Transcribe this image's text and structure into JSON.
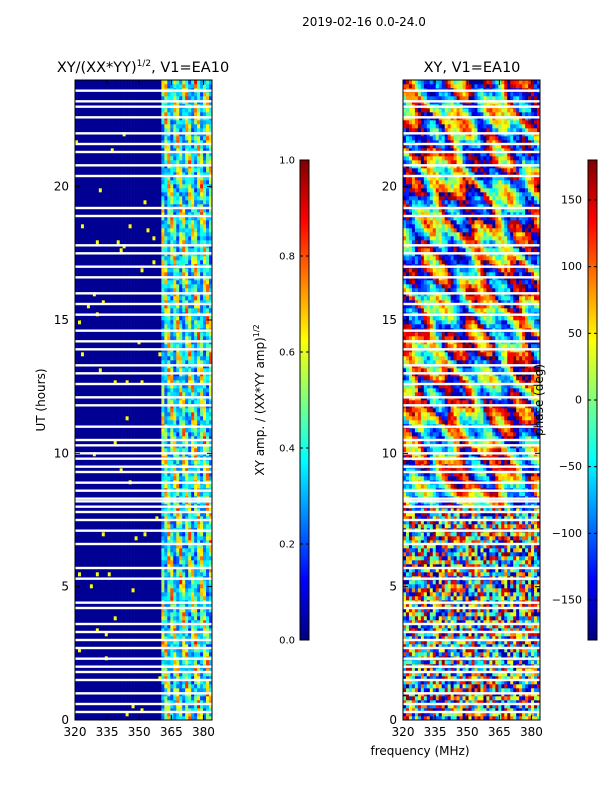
{
  "suptitle": "2019-02-16 0.0-24.0",
  "shared_xlabel": "frequency (MHz)",
  "colors": {
    "jet_stops": [
      "#00007f",
      "#0000ff",
      "#007fff",
      "#00ffff",
      "#7fff7f",
      "#ffff00",
      "#ff7f00",
      "#ff0000",
      "#7f0000"
    ],
    "gap": "#ffffff",
    "frame": "#000000"
  },
  "chart_data": [
    {
      "type": "heatmap",
      "title_main": "XY/(XX*YY)",
      "title_sup": "1/2",
      "title_tail": ", V1=EA10",
      "xlabel": "",
      "ylabel": "UT (hours)",
      "xlim": [
        320,
        384
      ],
      "ylim": [
        0,
        24
      ],
      "xticks": [
        320,
        335,
        350,
        365,
        380
      ],
      "yticks": [
        0,
        5,
        10,
        15,
        20
      ],
      "colorbar": {
        "label_main": "XY amp. / (XX*YY amp)",
        "label_sup": "1/2",
        "range": [
          0.0,
          1.0
        ],
        "ticks": [
          "0.0",
          "0.2",
          "0.4",
          "0.6",
          "0.8",
          "1.0"
        ]
      },
      "quiet_band_MHz": [
        320,
        361
      ],
      "active_band_MHz": [
        361,
        384
      ],
      "quiet_level": 0.02,
      "gap_hours": [
        0.3,
        0.6,
        1.0,
        1.5,
        1.8,
        2.0,
        2.3,
        2.7,
        3.0,
        3.3,
        3.6,
        4.2,
        4.4,
        5.3,
        5.7,
        6.6,
        7.1,
        7.5,
        7.8,
        8.0,
        8.2,
        8.3,
        8.6,
        8.9,
        9.3,
        9.5,
        9.8,
        10.0,
        10.3,
        10.5,
        11.0,
        11.8,
        12.1,
        12.6,
        13.0,
        13.3,
        13.9,
        14.2,
        14.6,
        15.2,
        15.6,
        16.0,
        16.6,
        17.0,
        17.5,
        17.8,
        18.9,
        19.2,
        20.4,
        20.8,
        21.3,
        21.6,
        22.0,
        22.6,
        23.0,
        23.2,
        23.6
      ]
    },
    {
      "type": "heatmap",
      "title_main": "XY, V1=EA10",
      "xlabel": "frequency (MHz)",
      "ylabel": "",
      "xlim": [
        320,
        384
      ],
      "ylim": [
        0,
        24
      ],
      "xticks": [
        320,
        335,
        350,
        365,
        380
      ],
      "yticks": [
        0,
        5,
        10,
        15,
        20
      ],
      "colorbar": {
        "label_main": "phase (deg)",
        "range": [
          -180,
          180
        ],
        "ticks": [
          "−150",
          "−100",
          "−50",
          "0",
          "50",
          "100",
          "150"
        ],
        "tick_values": [
          -150,
          -100,
          -50,
          0,
          50,
          100,
          150
        ]
      },
      "gap_hours": [
        0.3,
        0.6,
        1.0,
        1.5,
        1.8,
        2.0,
        2.3,
        2.7,
        3.0,
        3.3,
        3.6,
        4.2,
        4.4,
        5.3,
        5.7,
        6.6,
        7.1,
        7.5,
        7.8,
        8.0,
        8.2,
        8.3,
        8.6,
        8.9,
        9.3,
        9.5,
        9.8,
        10.0,
        10.3,
        10.5,
        11.0,
        11.8,
        12.1,
        12.6,
        13.0,
        13.3,
        13.9,
        14.2,
        14.6,
        15.2,
        15.6,
        16.0,
        16.6,
        17.0,
        17.5,
        17.8,
        18.9,
        19.2,
        20.4,
        20.8,
        21.3,
        21.6,
        22.0,
        22.6,
        23.0,
        23.2,
        23.6
      ]
    }
  ]
}
